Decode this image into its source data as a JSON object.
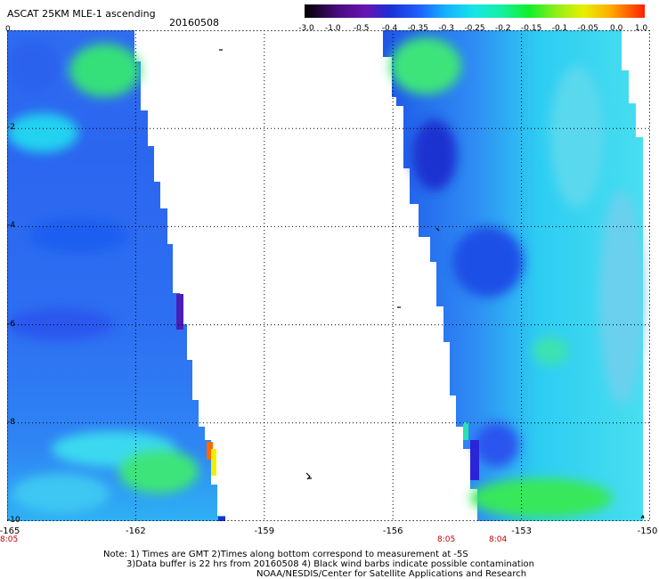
{
  "header": {
    "title": "ASCAT 25KM MLE-1 ascending",
    "date": "20160508"
  },
  "colorbar": {
    "labels": [
      "-3.0",
      "-1.0",
      "-0.5",
      "-0.4",
      "-0.35",
      "-0.3",
      "-0.25",
      "-0.2",
      "-0.15",
      "-0.1",
      "-0.05",
      "0.0",
      "1.0"
    ],
    "colors": [
      "#000000",
      "#5a0f8f",
      "#1a2fd6",
      "#1e63ff",
      "#15b6ff",
      "#17e6e6",
      "#14f0a0",
      "#10ef2a",
      "#90ee1a",
      "#e8f000",
      "#ffaa00",
      "#ff3000"
    ]
  },
  "axes": {
    "y_labels": [
      "0",
      "-2",
      "-4",
      "-6",
      "-8",
      "-10"
    ],
    "x_labels": [
      "-165",
      "-162",
      "-159",
      "-156",
      "-153",
      "-150"
    ],
    "lat_range": [
      -10,
      0
    ],
    "lon_range": [
      -165,
      -150
    ]
  },
  "time_labels": [
    "8:05",
    "8:05",
    "8:04"
  ],
  "notes": [
    "Note: 1) Times are GMT 2)Times along bottom correspond to measurement at -5S",
    "3)Data buffer is 22 hrs from 20160508 4) Black wind barbs indicate possible contamination",
    "NOAA/NESDIS/Center for Satellite Applications and Research"
  ]
}
